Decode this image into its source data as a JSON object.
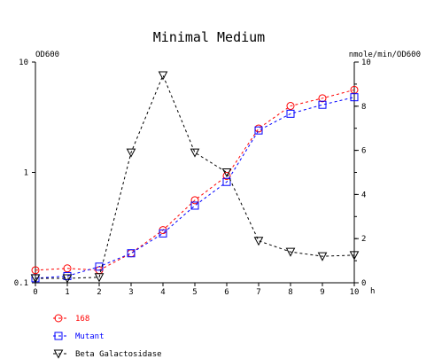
{
  "chart_data": {
    "type": "line",
    "title": "Minimal Medium",
    "left_axis_label": "OD600",
    "right_axis_label": "nmole/min/OD600",
    "x_unit": "h",
    "x": [
      0,
      1,
      2,
      3,
      4,
      5,
      6,
      7,
      8,
      9,
      10
    ],
    "x_tick_labels": [
      "0",
      "1",
      "2",
      "3",
      "4",
      "5",
      "6",
      "7",
      "8",
      "9",
      "10"
    ],
    "left_scale": "log",
    "left_ylim": [
      0.1,
      10
    ],
    "left_tick_labels": [
      "0.1",
      "1",
      "10"
    ],
    "right_ylim": [
      0,
      10
    ],
    "right_tick_labels": [
      "0",
      "2",
      "4",
      "6",
      "8",
      "10"
    ],
    "grid": false,
    "series": [
      {
        "name": "168",
        "axis": "left",
        "color": "#ff0000",
        "marker": "circle",
        "values": [
          0.13,
          0.135,
          0.13,
          0.185,
          0.3,
          0.56,
          0.93,
          2.5,
          4.0,
          4.7,
          5.6
        ]
      },
      {
        "name": "Mutant",
        "axis": "left",
        "color": "#0000ff",
        "marker": "square",
        "values": [
          0.11,
          0.115,
          0.14,
          0.185,
          0.28,
          0.5,
          0.82,
          2.4,
          3.4,
          4.1,
          4.8
        ]
      },
      {
        "name": "Beta Galactosidase",
        "axis": "right",
        "color": "#000000",
        "marker": "triangle-down",
        "values": [
          0.2,
          0.2,
          0.25,
          5.9,
          9.4,
          5.9,
          5.0,
          1.9,
          1.4,
          1.2,
          1.25
        ]
      }
    ]
  }
}
